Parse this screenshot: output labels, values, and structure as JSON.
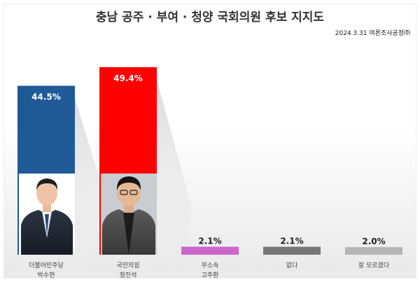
{
  "title": "충남 공주 · 부여 · 청양 국회의원 후보 지지도",
  "source": "2024.3.31 여론조사공정㈜",
  "chart_data": {
    "type": "bar",
    "title": "충남 공주 · 부여 · 청양 국회의원 후보 지지도",
    "categories": [
      {
        "party": "더불어민주당",
        "name": "박수현"
      },
      {
        "party": "국민의힘",
        "name": "정진석"
      },
      {
        "party": "무소속",
        "name": "고주환"
      },
      {
        "party": "없다",
        "name": ""
      },
      {
        "party": "잘 모르겠다",
        "name": ""
      }
    ],
    "values": [
      44.5,
      49.4,
      2.1,
      2.1,
      2.0
    ],
    "value_labels": [
      "44.5%",
      "49.4%",
      "2.1%",
      "2.1%",
      "2.0%"
    ],
    "colors": [
      "#1f5a96",
      "#ff0000",
      "#cc66cc",
      "#777777",
      "#b5b5b5"
    ],
    "ylim": [
      0,
      50
    ],
    "grid": false,
    "legend": "none",
    "xlabel": "",
    "ylabel": ""
  }
}
